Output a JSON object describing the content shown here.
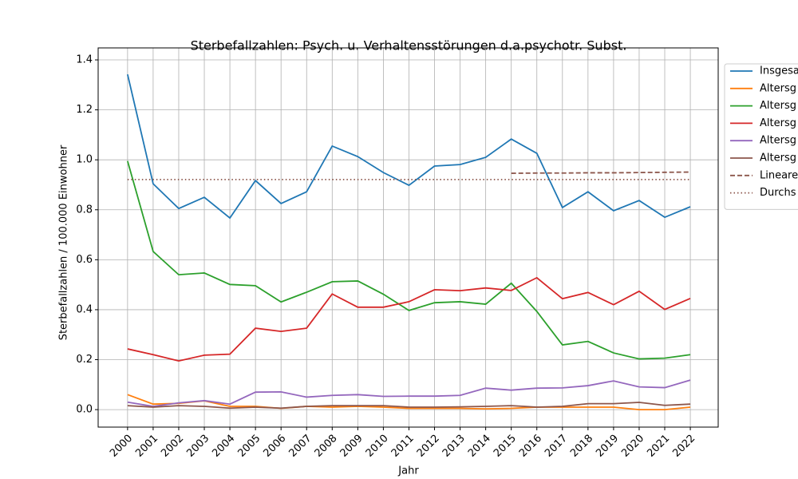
{
  "chart_data": {
    "type": "line",
    "title": "Sterbefallzahlen: Psych. u. Verhaltensstörungen d.a.psychotr. Subst.",
    "x_label": "Jahr",
    "y_label": "Sterbefallzahlen / 100.000 Einwohner",
    "x": [
      2000,
      2001,
      2002,
      2003,
      2004,
      2005,
      2006,
      2007,
      2008,
      2009,
      2010,
      2011,
      2012,
      2013,
      2014,
      2015,
      2016,
      2017,
      2018,
      2019,
      2020,
      2021,
      2022
    ],
    "xlim": [
      1998.85,
      2023.09
    ],
    "xticks": [
      2000,
      2001,
      2002,
      2003,
      2004,
      2005,
      2006,
      2007,
      2008,
      2009,
      2010,
      2011,
      2012,
      2013,
      2014,
      2015,
      2016,
      2017,
      2018,
      2019,
      2020,
      2021,
      2022
    ],
    "ylim": [
      -0.07,
      1.448
    ],
    "yticks": [
      {
        "value": 0,
        "label": "0.0"
      },
      0.2,
      0.4,
      0.6,
      0.8,
      {
        "value": 1,
        "label": "1.0"
      },
      1.2,
      1.4
    ],
    "grid": true,
    "legend": "outside right",
    "series": [
      {
        "name": "Insgesa",
        "color": "#1f77b4",
        "dash": "solid",
        "values": [
          1.342,
          0.904,
          0.805,
          0.85,
          0.767,
          0.917,
          0.825,
          0.872,
          1.055,
          1.013,
          0.949,
          0.898,
          0.975,
          0.981,
          1.01,
          1.083,
          1.026,
          0.809,
          0.872,
          0.796,
          0.837,
          0.77,
          0.812
        ]
      },
      {
        "name": "Altersg",
        "color": "#ff7f0e",
        "dash": "solid",
        "values": [
          0.06,
          0.022,
          0.025,
          0.035,
          0.013,
          0.013,
          0.005,
          0.013,
          0.01,
          0.013,
          0.01,
          0.005,
          0.005,
          0.005,
          0.003,
          0.005,
          0.01,
          0.01,
          0.01,
          0.01,
          0,
          0,
          0.01
        ]
      },
      {
        "name": "Altersg",
        "color": "#2ca02c",
        "dash": "solid",
        "values": [
          0.995,
          0.633,
          0.54,
          0.547,
          0.501,
          0.496,
          0.431,
          0.47,
          0.512,
          0.515,
          0.462,
          0.397,
          0.428,
          0.432,
          0.422,
          0.506,
          0.393,
          0.259,
          0.273,
          0.227,
          0.203,
          0.206,
          0.22
        ]
      },
      {
        "name": "Altersg",
        "color": "#d62728",
        "dash": "solid",
        "values": [
          0.243,
          0.22,
          0.195,
          0.218,
          0.222,
          0.326,
          0.313,
          0.326,
          0.463,
          0.41,
          0.41,
          0.432,
          0.48,
          0.476,
          0.487,
          0.477,
          0.528,
          0.444,
          0.469,
          0.42,
          0.474,
          0.401,
          0.445
        ]
      },
      {
        "name": "Altersg",
        "color": "#9467bd",
        "dash": "solid",
        "values": [
          0.03,
          0.013,
          0.027,
          0.036,
          0.022,
          0.07,
          0.071,
          0.05,
          0.057,
          0.06,
          0.053,
          0.054,
          0.054,
          0.057,
          0.086,
          0.078,
          0.086,
          0.087,
          0.096,
          0.115,
          0.091,
          0.088,
          0.118
        ]
      },
      {
        "name": "Altersg",
        "color": "#8c564b",
        "dash": "solid",
        "values": [
          0.016,
          0.01,
          0.016,
          0.013,
          0.006,
          0.01,
          0.006,
          0.013,
          0.016,
          0.016,
          0.016,
          0.01,
          0.01,
          0.011,
          0.013,
          0.016,
          0.01,
          0.013,
          0.024,
          0.024,
          0.029,
          0.017,
          0.022
        ]
      },
      {
        "name": "Lineare",
        "color": "#8c564b",
        "dash": "dashed",
        "values": [
          null,
          null,
          null,
          null,
          null,
          null,
          null,
          null,
          null,
          null,
          null,
          null,
          null,
          null,
          null,
          0.946,
          0.947,
          0.947,
          0.948,
          0.948,
          0.949,
          0.95,
          0.951
        ]
      },
      {
        "name": "Durchs",
        "color": "#8c564b",
        "dash": "dotted",
        "values": [
          0.921,
          0.921,
          0.921,
          0.921,
          0.921,
          0.921,
          0.921,
          0.921,
          0.921,
          0.921,
          0.921,
          0.921,
          0.921,
          0.921,
          0.921,
          0.921,
          0.921,
          0.921,
          0.921,
          0.921,
          0.921,
          0.921,
          0.921
        ]
      }
    ]
  }
}
